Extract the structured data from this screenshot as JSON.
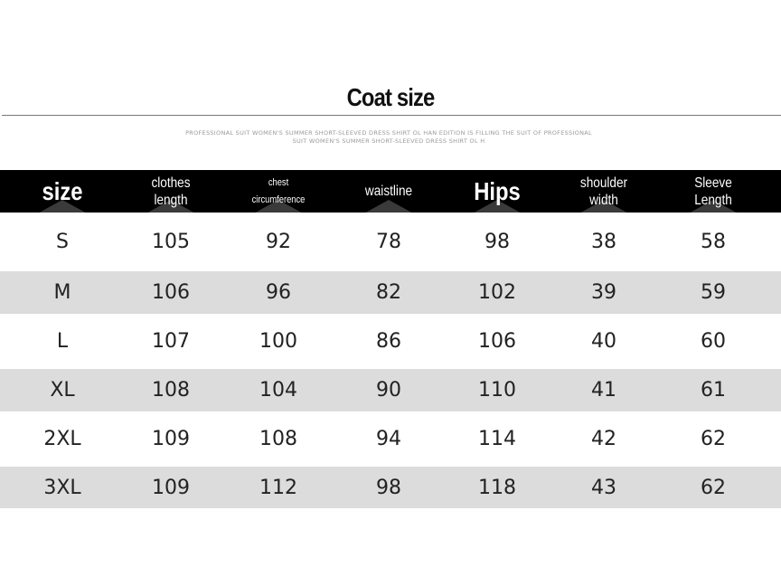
{
  "title": "Coat size",
  "subtitle": "PROFESSIONAL SUIT WOMEN'S SUMMER SHORT-SLEEVED DRESS SHIRT OL HAN EDITION IS FILLING THE SUIT OF PROFESSIONAL SUIT WOMEN'S SUMMER SHORT-SLEEVED DRESS SHIRT OL H",
  "headers": [
    "size",
    "clothes length",
    "chest circumference",
    "waistline",
    "Hips",
    "shoulder width",
    "Sleeve Length"
  ],
  "rows": [
    [
      "S",
      "105",
      "92",
      "78",
      "98",
      "38",
      "58"
    ],
    [
      "M",
      "106",
      "96",
      "82",
      "102",
      "39",
      "59"
    ],
    [
      "L",
      "107",
      "100",
      "86",
      "106",
      "40",
      "60"
    ],
    [
      "XL",
      "108",
      "104",
      "90",
      "110",
      "41",
      "61"
    ],
    [
      "2XL",
      "109",
      "108",
      "94",
      "114",
      "42",
      "62"
    ],
    [
      "3XL",
      "109",
      "112",
      "98",
      "118",
      "43",
      "62"
    ]
  ],
  "colors": {
    "header_bg": "#000000",
    "stripe": "#dcdcdc"
  }
}
